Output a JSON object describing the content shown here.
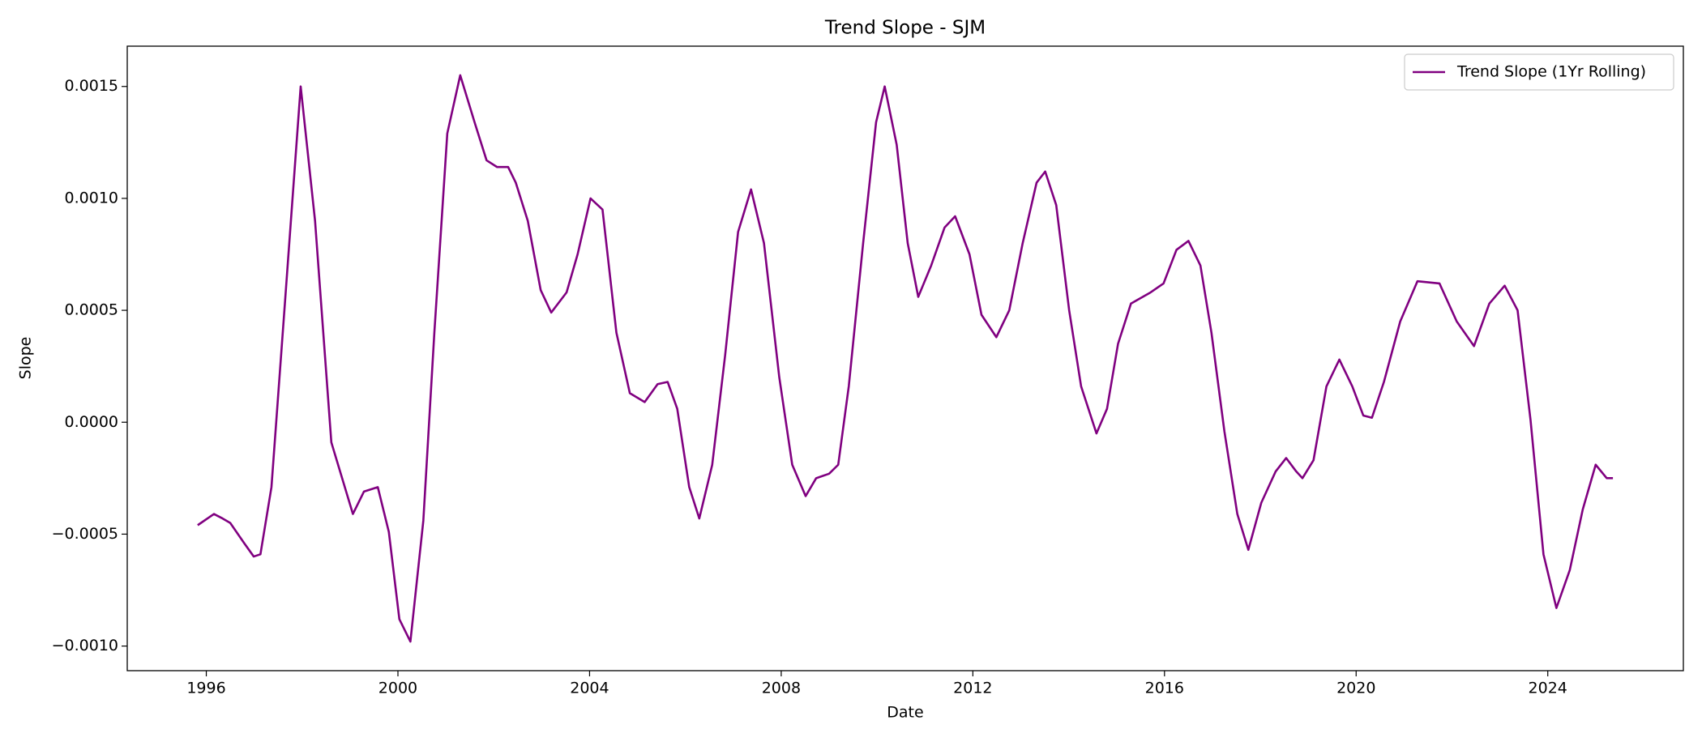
{
  "chart_data": {
    "type": "line",
    "title": "Trend Slope - SJM",
    "xlabel": "Date",
    "ylabel": "Slope",
    "xlim": [
      1994.35,
      2026.83
    ],
    "xticks": [
      1996,
      2000,
      2004,
      2008,
      2012,
      2016,
      2020,
      2024
    ],
    "ylim": [
      -0.00111,
      0.00168
    ],
    "yticks": [
      {
        "value": -0.001,
        "label": "−0.0010"
      },
      {
        "value": -0.0005,
        "label": "−0.0005"
      },
      {
        "value": 0,
        "label": "0.0000"
      },
      {
        "value": 0.0005,
        "label": "0.0005"
      },
      {
        "value": 0.001,
        "label": "0.0010"
      },
      {
        "value": 0.0015,
        "label": "0.0015"
      }
    ],
    "legend": "upper right",
    "x": [
      1995.82,
      1996.16,
      1996.34,
      1996.5,
      1996.79,
      1996.99,
      1997.13,
      1997.36,
      1997.63,
      1997.97,
      1998.27,
      1998.61,
      1999.06,
      1999.29,
      1999.58,
      1999.81,
      2000.03,
      2000.26,
      2000.53,
      2000.76,
      2001.03,
      2001.3,
      2001.6,
      2001.85,
      2002.07,
      2002.3,
      2002.46,
      2002.71,
      2002.98,
      2003.2,
      2003.52,
      2003.75,
      2004.02,
      2004.27,
      2004.56,
      2004.84,
      2005.15,
      2005.42,
      2005.63,
      2005.83,
      2006.08,
      2006.29,
      2006.56,
      2006.83,
      2007.1,
      2007.37,
      2007.64,
      2007.96,
      2008.23,
      2008.51,
      2008.73,
      2009.0,
      2009.19,
      2009.41,
      2009.71,
      2009.98,
      2010.16,
      2010.41,
      2010.64,
      2010.86,
      2011.13,
      2011.41,
      2011.63,
      2011.93,
      2012.18,
      2012.49,
      2012.76,
      2013.04,
      2013.33,
      2013.51,
      2013.74,
      2014.01,
      2014.26,
      2014.58,
      2014.8,
      2015.03,
      2015.3,
      2015.71,
      2015.98,
      2016.25,
      2016.5,
      2016.75,
      2016.98,
      2017.25,
      2017.52,
      2017.75,
      2018.02,
      2018.32,
      2018.54,
      2018.75,
      2018.88,
      2019.11,
      2019.38,
      2019.65,
      2019.92,
      2020.15,
      2020.33,
      2020.58,
      2020.92,
      2021.28,
      2021.74,
      2022.1,
      2022.46,
      2022.78,
      2023.1,
      2023.37,
      2023.64,
      2023.91,
      2024.18,
      2024.46,
      2024.73,
      2025.0,
      2025.23,
      2025.36
    ],
    "series": [
      {
        "name": "Trend Slope (1Yr Rolling)",
        "color": "#800080",
        "values": [
          -0.00046,
          -0.00041,
          -0.00043,
          -0.00045,
          -0.00054,
          -0.0006,
          -0.00059,
          -0.00029,
          0.0005,
          0.0015,
          0.0009,
          -9e-05,
          -0.00041,
          -0.00031,
          -0.00029,
          -0.00049,
          -0.00088,
          -0.00098,
          -0.00044,
          0.0004,
          0.00129,
          0.00155,
          0.00134,
          0.00117,
          0.00114,
          0.00114,
          0.00107,
          0.0009,
          0.00059,
          0.00049,
          0.00058,
          0.00075,
          0.001,
          0.00095,
          0.0004,
          0.00013,
          9e-05,
          0.00017,
          0.00018,
          6e-05,
          -0.00029,
          -0.00043,
          -0.00019,
          0.0003,
          0.00085,
          0.00104,
          0.0008,
          0.0002,
          -0.00019,
          -0.00033,
          -0.00025,
          -0.00023,
          -0.00019,
          0.00016,
          0.0008,
          0.00134,
          0.0015,
          0.00124,
          0.0008,
          0.00056,
          0.0007,
          0.00087,
          0.00092,
          0.00075,
          0.00048,
          0.00038,
          0.0005,
          0.0008,
          0.00107,
          0.00112,
          0.00097,
          0.0005,
          0.00016,
          -5e-05,
          6e-05,
          0.00035,
          0.00053,
          0.00058,
          0.00062,
          0.00077,
          0.00081,
          0.0007,
          0.0004,
          -4e-05,
          -0.00041,
          -0.00057,
          -0.00036,
          -0.00022,
          -0.00016,
          -0.00022,
          -0.00025,
          -0.00017,
          0.00016,
          0.00028,
          0.00016,
          3e-05,
          2e-05,
          0.00018,
          0.00045,
          0.00063,
          0.00062,
          0.00045,
          0.00034,
          0.00053,
          0.00061,
          0.0005,
          1e-05,
          -0.00059,
          -0.00083,
          -0.00066,
          -0.00039,
          -0.00019,
          -0.00025,
          -0.00025
        ]
      }
    ]
  }
}
